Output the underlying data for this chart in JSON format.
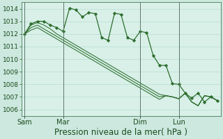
{
  "background_color": "#cce8df",
  "plot_bg_color": "#d8f0e8",
  "grid_color": "#b8ddd0",
  "line_color": "#2d6e2d",
  "marker_color": "#2d6e2d",
  "spine_color": "#5a8a6a",
  "xlabel": "Pression niveau de la mer( hPa )",
  "xlabel_fontsize": 8.5,
  "ylabel_fontsize": 6.5,
  "ylim": [
    1005.5,
    1014.5
  ],
  "yticks": [
    1006,
    1007,
    1008,
    1009,
    1010,
    1011,
    1012,
    1013,
    1014
  ],
  "xtick_labels": [
    "Sam",
    "Mar",
    "Dim",
    "Lun"
  ],
  "series1_x": [
    0,
    1,
    2,
    3,
    4,
    5,
    6,
    7,
    8,
    9,
    10,
    11,
    12,
    13,
    14,
    15,
    16,
    17,
    18,
    19,
    20,
    21,
    22,
    23,
    24,
    25,
    26,
    27,
    28,
    29,
    30
  ],
  "series1_y": [
    1012.0,
    1012.8,
    1013.0,
    1013.0,
    1012.7,
    1012.5,
    1012.2,
    1014.05,
    1013.9,
    1013.35,
    1013.7,
    1013.6,
    1011.7,
    1011.5,
    1013.65,
    1013.55,
    1011.7,
    1011.5,
    1012.2,
    1012.1,
    1010.3,
    1009.5,
    1009.5,
    1008.05,
    1008.0,
    1007.3,
    1006.9,
    1007.3,
    1006.6,
    1007.0,
    1006.7
  ],
  "series2_x": [
    0,
    1,
    2,
    3,
    4,
    5,
    6,
    7,
    8,
    9,
    10,
    11,
    12,
    13,
    14,
    15,
    16,
    17,
    18,
    19,
    20,
    21,
    22,
    23,
    24,
    25,
    26,
    27,
    28,
    29,
    30
  ],
  "series2_y": [
    1012.0,
    1012.7,
    1012.9,
    1012.7,
    1012.4,
    1012.0,
    1011.7,
    1011.4,
    1011.1,
    1010.8,
    1010.5,
    1010.2,
    1009.9,
    1009.6,
    1009.3,
    1009.0,
    1008.7,
    1008.4,
    1008.1,
    1007.8,
    1007.5,
    1007.2,
    1007.1,
    1007.0,
    1006.85,
    1007.3,
    1006.6,
    1006.3,
    1007.1,
    1007.0,
    1006.7
  ],
  "series3_x": [
    0,
    1,
    2,
    3,
    4,
    5,
    6,
    7,
    8,
    9,
    10,
    11,
    12,
    13,
    14,
    15,
    16,
    17,
    18,
    19,
    20,
    21,
    22,
    23,
    24,
    25,
    26,
    27,
    28,
    29,
    30
  ],
  "series3_y": [
    1012.0,
    1012.5,
    1012.7,
    1012.4,
    1012.1,
    1011.8,
    1011.5,
    1011.2,
    1010.9,
    1010.6,
    1010.3,
    1010.0,
    1009.7,
    1009.4,
    1009.1,
    1008.8,
    1008.5,
    1008.2,
    1007.9,
    1007.6,
    1007.3,
    1007.0,
    1007.1,
    1007.0,
    1006.85,
    1007.3,
    1006.6,
    1006.3,
    1007.1,
    1007.0,
    1006.7
  ],
  "series4_x": [
    0,
    1,
    2,
    3,
    4,
    5,
    6,
    7,
    8,
    9,
    10,
    11,
    12,
    13,
    14,
    15,
    16,
    17,
    18,
    19,
    20,
    21,
    22,
    23,
    24,
    25,
    26,
    27,
    28,
    29,
    30
  ],
  "series4_y": [
    1012.0,
    1012.3,
    1012.5,
    1012.2,
    1011.9,
    1011.6,
    1011.3,
    1011.0,
    1010.7,
    1010.4,
    1010.1,
    1009.8,
    1009.5,
    1009.2,
    1008.9,
    1008.6,
    1008.3,
    1008.0,
    1007.7,
    1007.4,
    1007.1,
    1006.8,
    1007.1,
    1007.0,
    1006.85,
    1007.3,
    1006.6,
    1006.3,
    1007.1,
    1007.0,
    1006.7
  ],
  "vline_x": [
    0,
    6,
    18,
    24
  ],
  "xtick_x": [
    0,
    6,
    18,
    24
  ]
}
